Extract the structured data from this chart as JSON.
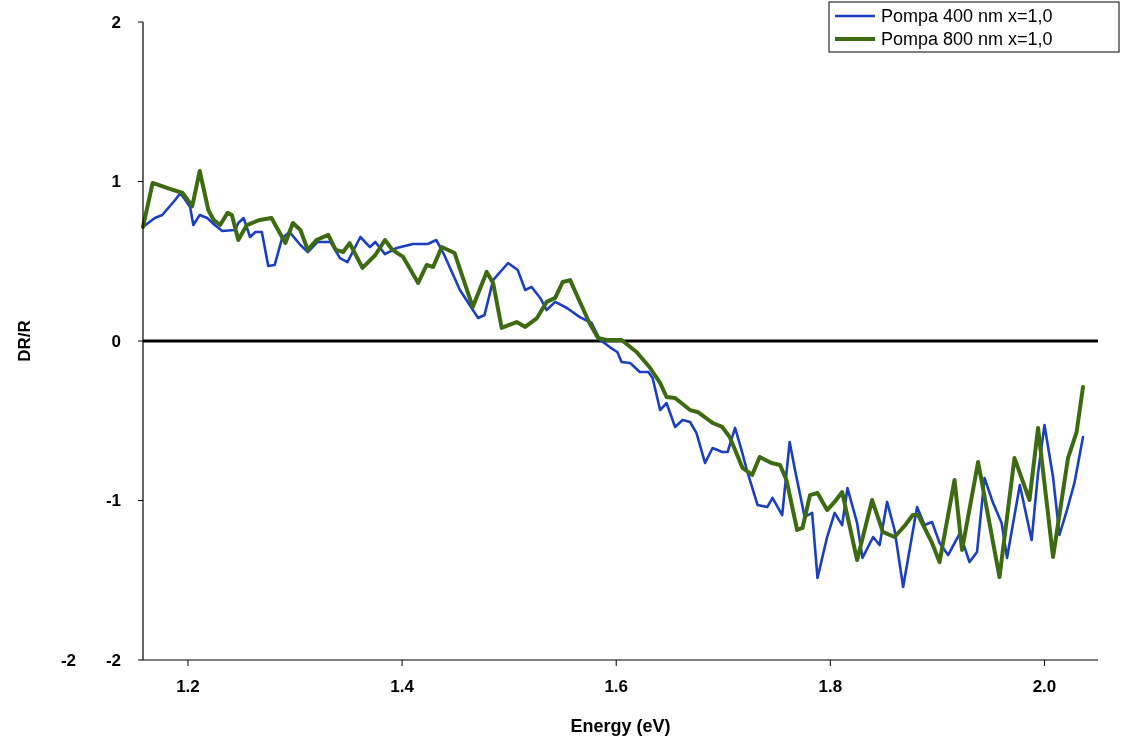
{
  "chart_data": {
    "type": "line",
    "xlabel": "Energy (eV)",
    "ylabel": "DR/R",
    "xlim": [
      1.158,
      2.05
    ],
    "xticks": [
      {
        "value": 1.2,
        "label": "1.2"
      },
      {
        "value": 1.4,
        "label": "1.4"
      },
      {
        "value": 1.6,
        "label": "1.6"
      },
      {
        "value": 1.8,
        "label": "1.8"
      },
      {
        "value": 2.0,
        "label": "2.0"
      }
    ],
    "ylim": [
      -2,
      2
    ],
    "yticks": [
      -2,
      -1,
      0,
      1,
      2
    ],
    "grid": false,
    "legend": "top right",
    "line_style": "solid",
    "annotations": [
      "-2"
    ],
    "ref_lines": [
      {
        "axis": "y",
        "value": 0,
        "color": "#000000"
      }
    ],
    "series": [
      {
        "name": "Pompa 400 nm x=1,0",
        "color": "#1a3fc0",
        "x": [
          1.158,
          1.169,
          1.176,
          1.188,
          1.193,
          1.202,
          1.205,
          1.211,
          1.218,
          1.225,
          1.232,
          1.244,
          1.247,
          1.252,
          1.258,
          1.263,
          1.269,
          1.275,
          1.281,
          1.288,
          1.295,
          1.305,
          1.312,
          1.321,
          1.333,
          1.342,
          1.349,
          1.361,
          1.37,
          1.375,
          1.384,
          1.395,
          1.41,
          1.424,
          1.432,
          1.439,
          1.454,
          1.471,
          1.477,
          1.485,
          1.499,
          1.508,
          1.515,
          1.521,
          1.529,
          1.535,
          1.543,
          1.554,
          1.566,
          1.577,
          1.585,
          1.594,
          1.601,
          1.605,
          1.613,
          1.622,
          1.63,
          1.634,
          1.641,
          1.647,
          1.655,
          1.662,
          1.669,
          1.675,
          1.683,
          1.69,
          1.699,
          1.704,
          1.711,
          1.717,
          1.722,
          1.732,
          1.741,
          1.746,
          1.755,
          1.762,
          1.767,
          1.776,
          1.783,
          1.788,
          1.797,
          1.804,
          1.811,
          1.816,
          1.825,
          1.83,
          1.84,
          1.846,
          1.853,
          1.86,
          1.868,
          1.874,
          1.881,
          1.888,
          1.895,
          1.902,
          1.91,
          1.921,
          1.93,
          1.937,
          1.944,
          1.952,
          1.96,
          1.965,
          1.977,
          1.988,
          1.994,
          2.0,
          2.008,
          2.014,
          2.021,
          2.028,
          2.036
        ],
        "values": [
          0.715,
          0.771,
          0.79,
          0.884,
          0.928,
          0.84,
          0.727,
          0.79,
          0.771,
          0.727,
          0.69,
          0.696,
          0.74,
          0.771,
          0.652,
          0.683,
          0.683,
          0.47,
          0.477,
          0.646,
          0.683,
          0.602,
          0.558,
          0.621,
          0.621,
          0.52,
          0.495,
          0.652,
          0.589,
          0.621,
          0.545,
          0.583,
          0.608,
          0.608,
          0.633,
          0.545,
          0.32,
          0.144,
          0.163,
          0.382,
          0.489,
          0.445,
          0.32,
          0.339,
          0.27,
          0.194,
          0.245,
          0.207,
          0.15,
          0.113,
          0.006,
          -0.038,
          -0.069,
          -0.132,
          -0.138,
          -0.194,
          -0.194,
          -0.232,
          -0.433,
          -0.389,
          -0.539,
          -0.495,
          -0.508,
          -0.577,
          -0.765,
          -0.671,
          -0.696,
          -0.696,
          -0.545,
          -0.683,
          -0.809,
          -1.028,
          -1.041,
          -0.984,
          -1.091,
          -0.633,
          -0.809,
          -1.103,
          -1.078,
          -1.486,
          -1.229,
          -1.078,
          -1.154,
          -0.922,
          -1.141,
          -1.36,
          -1.229,
          -1.279,
          -1.009,
          -1.185,
          -1.542,
          -1.31,
          -1.041,
          -1.154,
          -1.135,
          -1.266,
          -1.342,
          -1.204,
          -1.386,
          -1.323,
          -0.859,
          -1.016,
          -1.141,
          -1.36,
          -0.903,
          -1.248,
          -0.828,
          -0.527,
          -0.853,
          -1.216,
          -1.06,
          -0.89,
          -0.602
        ]
      },
      {
        "name": "Pompa 800 nm x=1,0",
        "color": "#3d6b12",
        "x": [
          1.158,
          1.167,
          1.181,
          1.195,
          1.204,
          1.211,
          1.219,
          1.224,
          1.23,
          1.237,
          1.241,
          1.247,
          1.255,
          1.267,
          1.278,
          1.291,
          1.298,
          1.305,
          1.312,
          1.32,
          1.331,
          1.338,
          1.345,
          1.351,
          1.363,
          1.375,
          1.384,
          1.391,
          1.401,
          1.415,
          1.423,
          1.429,
          1.437,
          1.449,
          1.466,
          1.479,
          1.485,
          1.493,
          1.507,
          1.515,
          1.526,
          1.535,
          1.543,
          1.55,
          1.557,
          1.564,
          1.575,
          1.583,
          1.591,
          1.605,
          1.619,
          1.631,
          1.641,
          1.647,
          1.655,
          1.669,
          1.676,
          1.69,
          1.699,
          1.706,
          1.718,
          1.727,
          1.734,
          1.745,
          1.753,
          1.759,
          1.769,
          1.774,
          1.781,
          1.788,
          1.797,
          1.804,
          1.811,
          1.825,
          1.839,
          1.849,
          1.86,
          1.87,
          1.877,
          1.882,
          1.895,
          1.902,
          1.916,
          1.923,
          1.938,
          1.958,
          1.972,
          1.986,
          1.994,
          2.008,
          2.022,
          2.03,
          2.036
        ],
        "values": [
          0.715,
          0.991,
          0.959,
          0.928,
          0.846,
          1.066,
          0.821,
          0.759,
          0.727,
          0.803,
          0.79,
          0.633,
          0.727,
          0.759,
          0.771,
          0.614,
          0.74,
          0.696,
          0.571,
          0.633,
          0.665,
          0.571,
          0.558,
          0.614,
          0.458,
          0.539,
          0.633,
          0.571,
          0.527,
          0.364,
          0.477,
          0.464,
          0.589,
          0.552,
          0.213,
          0.433,
          0.364,
          0.082,
          0.119,
          0.088,
          0.144,
          0.245,
          0.27,
          0.37,
          0.382,
          0.276,
          0.113,
          0.019,
          0.006,
          0.006,
          -0.069,
          -0.163,
          -0.263,
          -0.351,
          -0.357,
          -0.433,
          -0.445,
          -0.514,
          -0.539,
          -0.602,
          -0.796,
          -0.84,
          -0.727,
          -0.765,
          -0.777,
          -0.871,
          -1.185,
          -1.172,
          -0.966,
          -0.953,
          -1.06,
          -1.009,
          -0.947,
          -1.373,
          -0.997,
          -1.197,
          -1.229,
          -1.154,
          -1.091,
          -1.091,
          -1.266,
          -1.386,
          -0.871,
          -1.31,
          -0.759,
          -1.48,
          -0.734,
          -0.997,
          -0.545,
          -1.354,
          -0.734,
          -0.571,
          -0.288
        ]
      }
    ]
  }
}
